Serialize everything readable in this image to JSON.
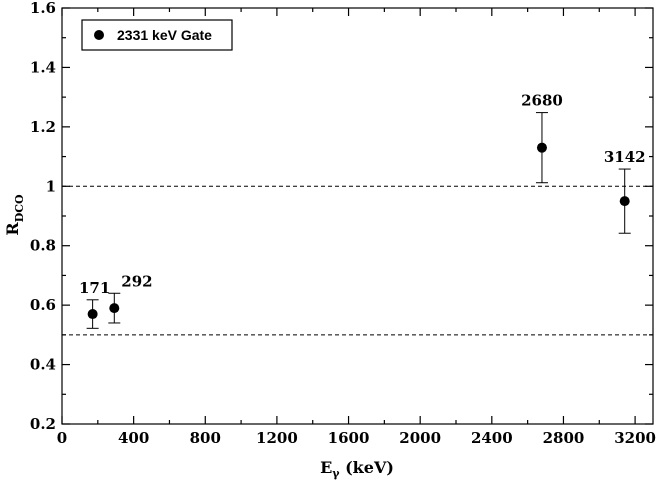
{
  "chart_data": {
    "type": "scatter",
    "title": "",
    "xlabel": {
      "main": "E",
      "sub": "γ",
      "unit": " (keV)"
    },
    "ylabel": {
      "main": "R",
      "sub": "DCO"
    },
    "xlim": [
      0,
      3300
    ],
    "ylim": [
      0.2,
      1.6
    ],
    "xticks": [
      0,
      400,
      800,
      1200,
      1600,
      2000,
      2400,
      2800,
      3200
    ],
    "xtick_labels": [
      "0",
      "400",
      "800",
      "1200",
      "1600",
      "2000",
      "2400",
      "2800",
      "3200"
    ],
    "x_minor_step": 200,
    "yticks": [
      0.2,
      0.4,
      0.6,
      0.8,
      1.0,
      1.2,
      1.4,
      1.6
    ],
    "ytick_labels": [
      "0.2",
      "0.4",
      "0.6",
      "0.8",
      "1",
      "1.2",
      "1.4",
      "1.6"
    ],
    "y_minor_step": 0.1,
    "grid": false,
    "reference_lines": [
      0.5,
      1.0
    ],
    "legend": {
      "position": "top-left",
      "entries": [
        "2331 keV Gate"
      ]
    },
    "series": [
      {
        "name": "2331 keV Gate",
        "points": [
          {
            "x": 171,
            "y": 0.57,
            "yerr": 0.048,
            "label": "171"
          },
          {
            "x": 292,
            "y": 0.59,
            "yerr": 0.05,
            "label": "292"
          },
          {
            "x": 2680,
            "y": 1.13,
            "yerr": 0.118,
            "label": "2680"
          },
          {
            "x": 3142,
            "y": 0.95,
            "yerr": 0.108,
            "label": "3142"
          }
        ]
      }
    ]
  }
}
